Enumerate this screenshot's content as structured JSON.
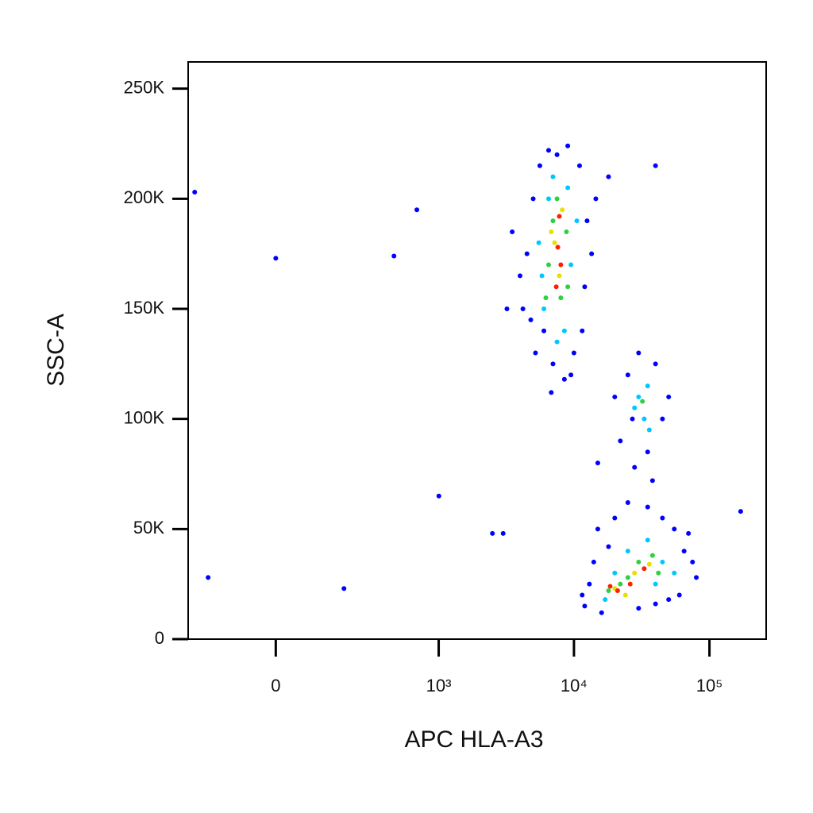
{
  "chart_data": {
    "type": "scatter",
    "x_label": "APC HLA-A3",
    "y_label": "SSC-A",
    "x_scale": "biexponential",
    "xlim": [
      -265,
      262144
    ],
    "xticks": [
      0,
      {
        "value": 1000,
        "label": "10³"
      },
      {
        "value": 10000,
        "label": "10⁴"
      },
      {
        "value": 100000,
        "label": "10⁵"
      }
    ],
    "ylim": [
      0,
      262144
    ],
    "yticks": [
      0,
      {
        "value": 50000,
        "label": "50K"
      },
      {
        "value": 100000,
        "label": "100K"
      },
      {
        "value": 150000,
        "label": "150K"
      },
      {
        "value": 200000,
        "label": "200K"
      },
      {
        "value": 250000,
        "label": "250K"
      }
    ],
    "series": [
      {
        "color": "#0000ff",
        "x": [
          4200,
          4500,
          5000,
          5200,
          5600,
          6000,
          6500,
          7000,
          7500,
          8500,
          9000,
          10000,
          11000,
          12000,
          12500,
          13500,
          4000,
          4800,
          9500,
          11500,
          3500,
          14500,
          3200,
          6800,
          22000,
          25000,
          28000,
          30000,
          35000,
          40000,
          45000,
          50000,
          20000,
          38000,
          27000,
          12000,
          14000,
          15000,
          16000,
          20000,
          25000,
          30000,
          35000,
          45000,
          55000,
          65000,
          75000,
          80000,
          60000,
          18000,
          13000,
          70000,
          40000,
          50000,
          11500,
          -234,
          0,
          687,
          461,
          1003,
          181,
          -179,
          170000,
          2500,
          3000,
          15000,
          40000,
          18000
        ],
        "values": [
          150000,
          175000,
          200000,
          130000,
          215000,
          140000,
          222000,
          125000,
          220000,
          118000,
          224000,
          130000,
          215000,
          160000,
          190000,
          175000,
          165000,
          145000,
          120000,
          140000,
          185000,
          200000,
          150000,
          112000,
          90000,
          120000,
          78000,
          130000,
          85000,
          125000,
          100000,
          110000,
          110000,
          72000,
          100000,
          15000,
          35000,
          50000,
          12000,
          55000,
          62000,
          14000,
          60000,
          55000,
          50000,
          40000,
          35000,
          28000,
          20000,
          42000,
          25000,
          48000,
          16000,
          18000,
          20000,
          203000,
          173000,
          195000,
          174000,
          65000,
          23000,
          28000,
          58000,
          48000,
          48000,
          80000,
          215000,
          210000
        ]
      },
      {
        "color": "#00c8ff",
        "x": [
          6000,
          6500,
          7000,
          8500,
          9500,
          5500,
          10500,
          7500,
          9000,
          5800,
          30000,
          33000,
          35000,
          28000,
          36000,
          20000,
          25000,
          35000,
          45000,
          17000,
          55000,
          40000
        ],
        "values": [
          150000,
          200000,
          210000,
          140000,
          170000,
          180000,
          190000,
          135000,
          205000,
          165000,
          110000,
          100000,
          115000,
          105000,
          95000,
          30000,
          40000,
          45000,
          35000,
          18000,
          30000,
          25000
        ]
      },
      {
        "color": "#30d040",
        "x": [
          6500,
          7000,
          8000,
          8800,
          7500,
          6200,
          9000,
          32000,
          25000,
          30000,
          38000,
          22000,
          42000,
          18000
        ],
        "values": [
          170000,
          190000,
          155000,
          185000,
          200000,
          155000,
          160000,
          108000,
          28000,
          35000,
          38000,
          25000,
          30000,
          22000
        ]
      },
      {
        "color": "#e8e000",
        "x": [
          7200,
          7800,
          8200,
          6800,
          28000,
          36000,
          20000,
          24000
        ],
        "values": [
          180000,
          165000,
          195000,
          185000,
          30000,
          34000,
          23000,
          20000
        ]
      },
      {
        "color": "#ff2000",
        "x": [
          7600,
          8000,
          7400,
          7800,
          21000,
          33000,
          18500,
          26000
        ],
        "values": [
          178000,
          170000,
          160000,
          192000,
          22000,
          32000,
          24000,
          25000
        ]
      }
    ]
  }
}
